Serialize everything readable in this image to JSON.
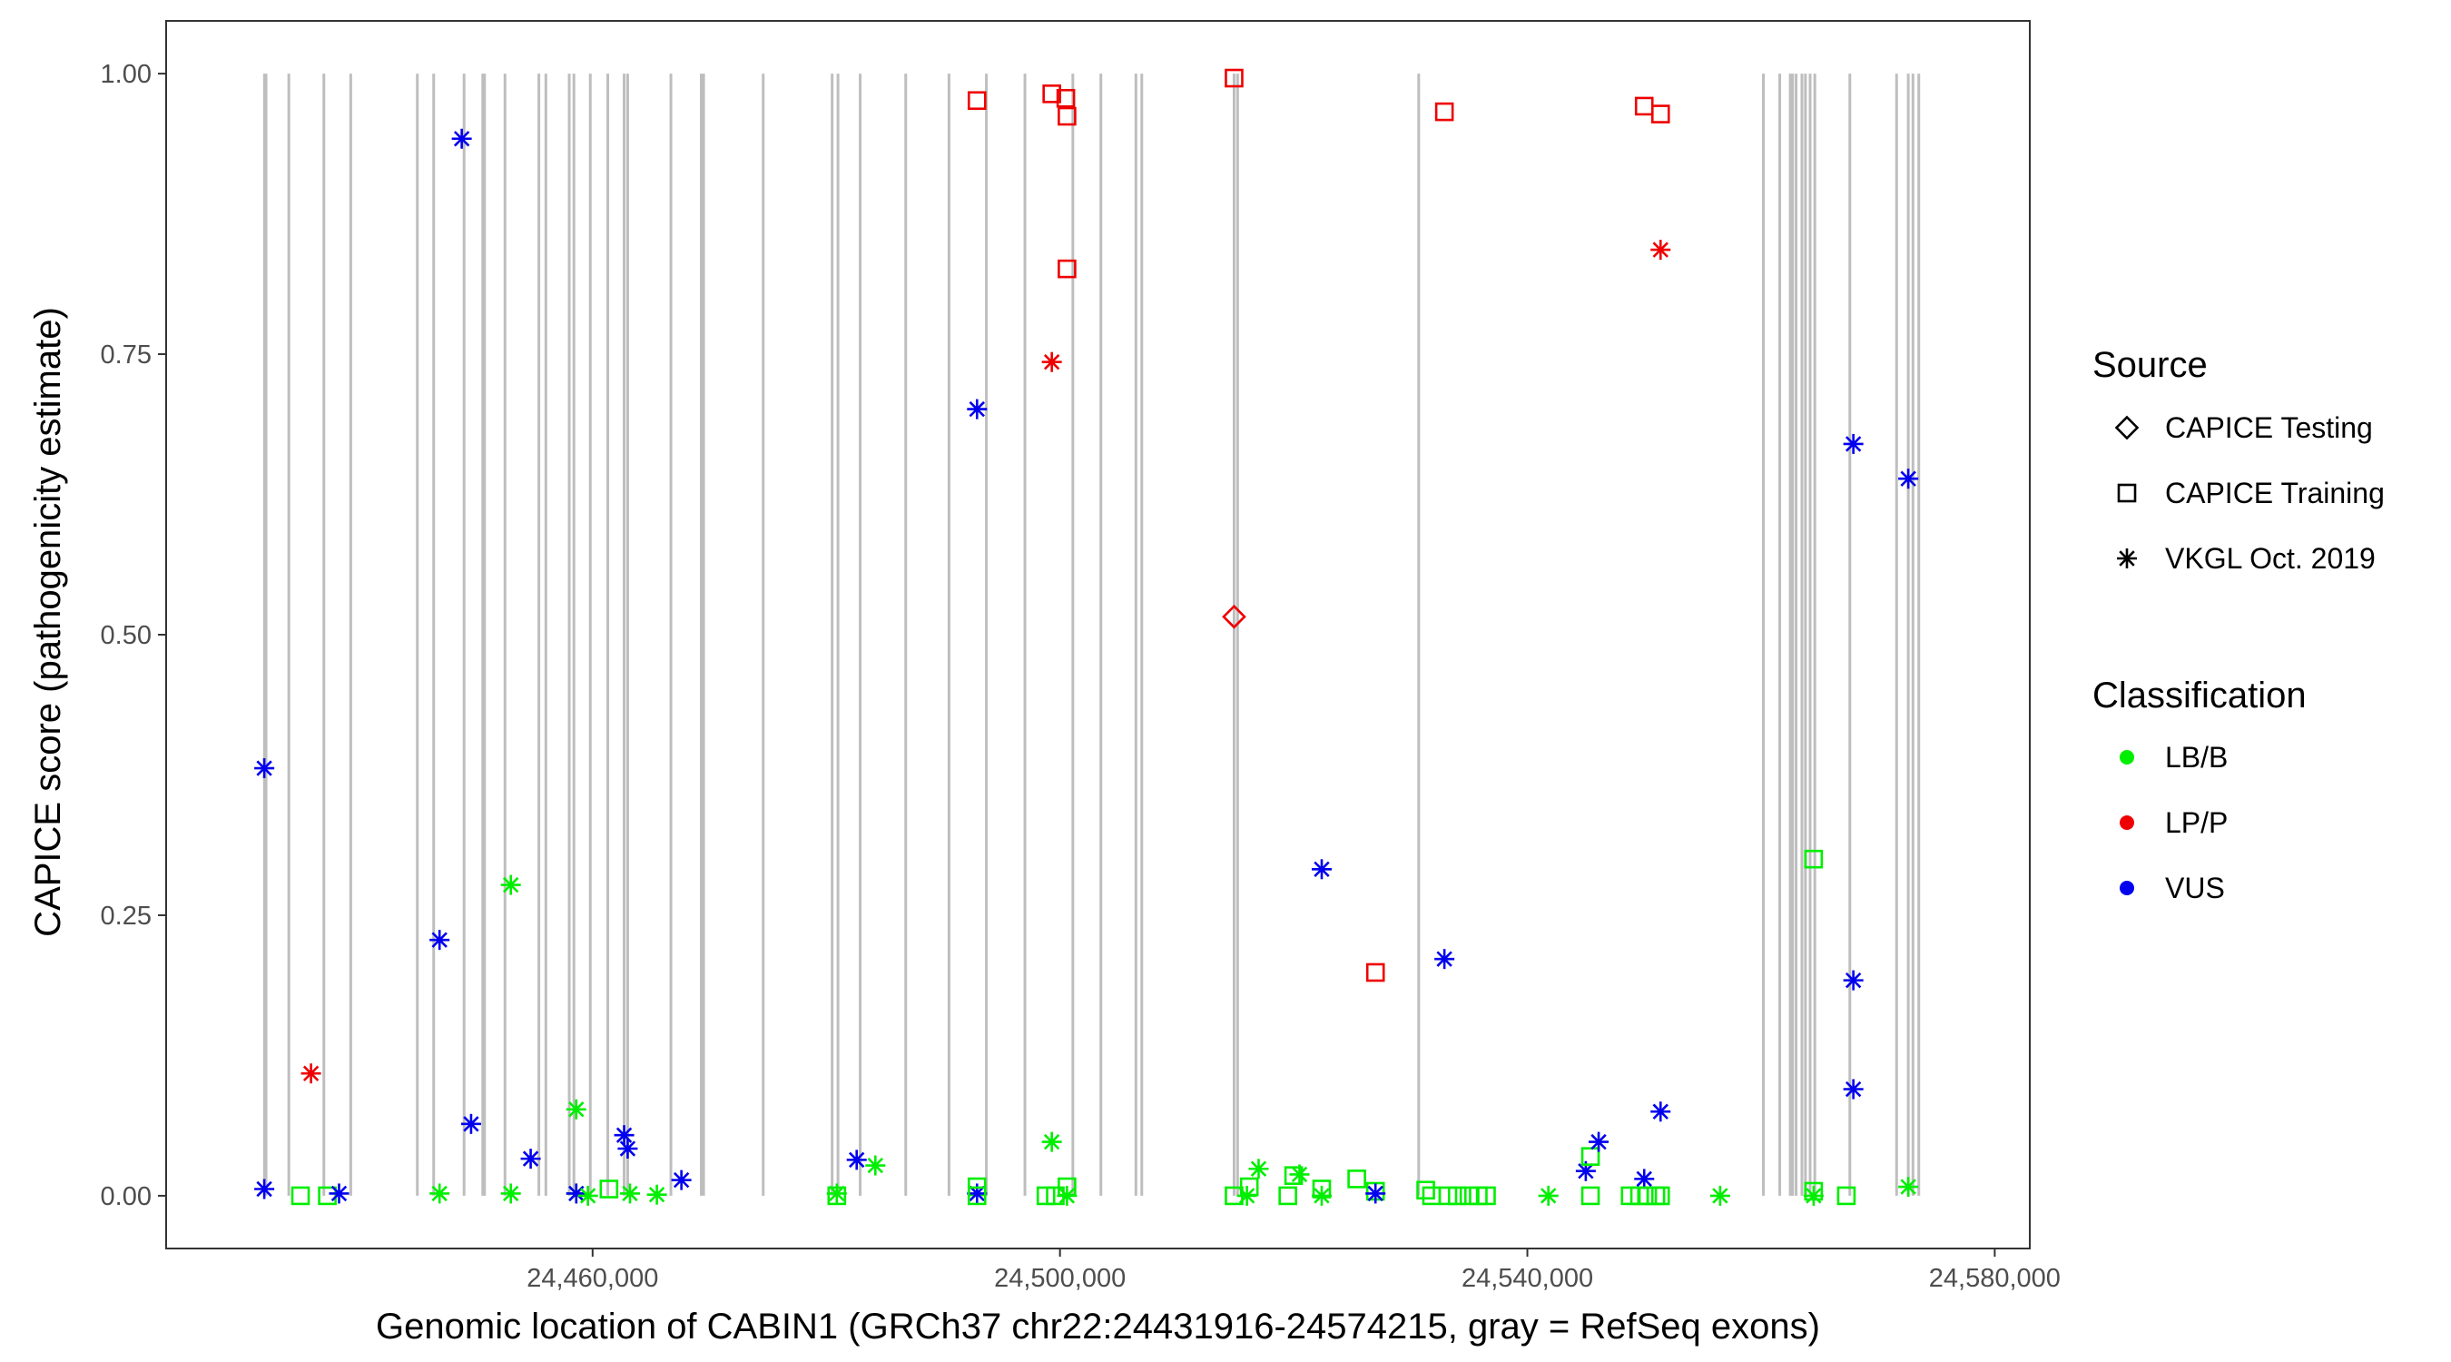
{
  "chart_data": {
    "type": "scatter",
    "title": "",
    "xlabel": "Genomic location of CABIN1 (GRCh37 chr22:24431916-24574215, gray = RefSeq exons)",
    "ylabel": "CAPICE score (pathogenicity estimate)",
    "xlim": [
      24423500,
      24583000
    ],
    "ylim": [
      -0.047,
      1.047
    ],
    "x_ticks": [
      24460000,
      24500000,
      24540000,
      24580000
    ],
    "x_tick_labels": [
      "24,460,000",
      "24,500,000",
      "24,540,000",
      "24,580,000"
    ],
    "y_ticks": [
      0.0,
      0.25,
      0.5,
      0.75,
      1.0
    ],
    "y_tick_labels": [
      "0.00",
      "0.25",
      "0.50",
      "0.75",
      "1.00"
    ],
    "grid": false,
    "exon_color": "#bebebe",
    "exons": [
      24431916,
      24432050,
      24434000,
      24437000,
      24439300,
      24445000,
      24446400,
      24449000,
      24450600,
      24450750,
      24452500,
      24455400,
      24456000,
      24458000,
      24458400,
      24459800,
      24461300,
      24462700,
      24463000,
      24466700,
      24469300,
      24469500,
      24474600,
      24480500,
      24481000,
      24482900,
      24486800,
      24490500,
      24493700,
      24497000,
      24501100,
      24503500,
      24506500,
      24507000,
      24514900,
      24515200,
      24530700,
      24560200,
      24561600,
      24562500,
      24562700,
      24563000,
      24563500,
      24563800,
      24564200,
      24564600,
      24567600,
      24571600,
      24572600,
      24573000,
      24573500
    ],
    "colors": {
      "LB/B": "#00ee00",
      "LP/P": "#ee0000",
      "VUS": "#0000ee"
    },
    "source_shapes": {
      "CAPICE Testing": "diamond",
      "CAPICE Training": "square",
      "VKGL Oct. 2019": "asterisk"
    },
    "points": [
      {
        "x": 24431900,
        "y": 0.381,
        "source": "VKGL Oct. 2019",
        "classification": "VUS"
      },
      {
        "x": 24431900,
        "y": 0.006,
        "source": "VKGL Oct. 2019",
        "classification": "VUS"
      },
      {
        "x": 24435000,
        "y": 0.0,
        "source": "CAPICE Training",
        "classification": "LB/B"
      },
      {
        "x": 24435900,
        "y": 0.109,
        "source": "VKGL Oct. 2019",
        "classification": "LP/P"
      },
      {
        "x": 24437300,
        "y": 0.0,
        "source": "CAPICE Training",
        "classification": "LB/B"
      },
      {
        "x": 24438300,
        "y": 0.002,
        "source": "VKGL Oct. 2019",
        "classification": "VUS"
      },
      {
        "x": 24446900,
        "y": 0.002,
        "source": "VKGL Oct. 2019",
        "classification": "LB/B"
      },
      {
        "x": 24446900,
        "y": 0.228,
        "source": "VKGL Oct. 2019",
        "classification": "VUS"
      },
      {
        "x": 24448800,
        "y": 0.942,
        "source": "VKGL Oct. 2019",
        "classification": "VUS"
      },
      {
        "x": 24449600,
        "y": 0.064,
        "source": "VKGL Oct. 2019",
        "classification": "VUS"
      },
      {
        "x": 24453000,
        "y": 0.002,
        "source": "VKGL Oct. 2019",
        "classification": "LB/B"
      },
      {
        "x": 24453000,
        "y": 0.277,
        "source": "VKGL Oct. 2019",
        "classification": "LB/B"
      },
      {
        "x": 24454700,
        "y": 0.033,
        "source": "VKGL Oct. 2019",
        "classification": "VUS"
      },
      {
        "x": 24458600,
        "y": 0.077,
        "source": "VKGL Oct. 2019",
        "classification": "LB/B"
      },
      {
        "x": 24458600,
        "y": 0.002,
        "source": "VKGL Oct. 2019",
        "classification": "LB/B"
      },
      {
        "x": 24458600,
        "y": 0.002,
        "source": "VKGL Oct. 2019",
        "classification": "VUS"
      },
      {
        "x": 24459600,
        "y": 0.0,
        "source": "VKGL Oct. 2019",
        "classification": "LB/B"
      },
      {
        "x": 24461400,
        "y": 0.006,
        "source": "CAPICE Training",
        "classification": "LB/B"
      },
      {
        "x": 24462700,
        "y": 0.054,
        "source": "VKGL Oct. 2019",
        "classification": "VUS"
      },
      {
        "x": 24463000,
        "y": 0.042,
        "source": "VKGL Oct. 2019",
        "classification": "VUS"
      },
      {
        "x": 24463200,
        "y": 0.002,
        "source": "VKGL Oct. 2019",
        "classification": "LB/B"
      },
      {
        "x": 24465500,
        "y": 0.001,
        "source": "VKGL Oct. 2019",
        "classification": "LB/B"
      },
      {
        "x": 24467600,
        "y": 0.014,
        "source": "VKGL Oct. 2019",
        "classification": "VUS"
      },
      {
        "x": 24480900,
        "y": 0.002,
        "source": "VKGL Oct. 2019",
        "classification": "LB/B"
      },
      {
        "x": 24480900,
        "y": 0.0,
        "source": "CAPICE Training",
        "classification": "LB/B"
      },
      {
        "x": 24482600,
        "y": 0.032,
        "source": "VKGL Oct. 2019",
        "classification": "VUS"
      },
      {
        "x": 24484200,
        "y": 0.027,
        "source": "VKGL Oct. 2019",
        "classification": "LB/B"
      },
      {
        "x": 24492900,
        "y": 0.976,
        "source": "CAPICE Training",
        "classification": "LP/P"
      },
      {
        "x": 24492900,
        "y": 0.701,
        "source": "VKGL Oct. 2019",
        "classification": "VUS"
      },
      {
        "x": 24492900,
        "y": 0.008,
        "source": "CAPICE Training",
        "classification": "LB/B"
      },
      {
        "x": 24492900,
        "y": 0.002,
        "source": "VKGL Oct. 2019",
        "classification": "VUS"
      },
      {
        "x": 24492900,
        "y": 0.0,
        "source": "CAPICE Training",
        "classification": "LB/B"
      },
      {
        "x": 24498800,
        "y": 0.0,
        "source": "CAPICE Training",
        "classification": "LB/B"
      },
      {
        "x": 24499300,
        "y": 0.982,
        "source": "CAPICE Training",
        "classification": "LP/P"
      },
      {
        "x": 24499300,
        "y": 0.743,
        "source": "VKGL Oct. 2019",
        "classification": "LP/P"
      },
      {
        "x": 24499300,
        "y": 0.048,
        "source": "VKGL Oct. 2019",
        "classification": "LB/B"
      },
      {
        "x": 24499600,
        "y": 0.0,
        "source": "CAPICE Training",
        "classification": "LB/B"
      },
      {
        "x": 24500500,
        "y": 0.978,
        "source": "CAPICE Training",
        "classification": "LP/P"
      },
      {
        "x": 24500600,
        "y": 0.962,
        "source": "CAPICE Training",
        "classification": "LP/P"
      },
      {
        "x": 24500600,
        "y": 0.826,
        "source": "CAPICE Training",
        "classification": "LP/P"
      },
      {
        "x": 24500600,
        "y": 0.008,
        "source": "CAPICE Training",
        "classification": "LB/B"
      },
      {
        "x": 24500600,
        "y": 0.0,
        "source": "VKGL Oct. 2019",
        "classification": "LB/B"
      },
      {
        "x": 24514900,
        "y": 0.996,
        "source": "CAPICE Training",
        "classification": "LP/P"
      },
      {
        "x": 24514900,
        "y": 0.516,
        "source": "CAPICE Testing",
        "classification": "LP/P"
      },
      {
        "x": 24514900,
        "y": 0.0,
        "source": "CAPICE Training",
        "classification": "LB/B"
      },
      {
        "x": 24516000,
        "y": 0.0,
        "source": "VKGL Oct. 2019",
        "classification": "LB/B"
      },
      {
        "x": 24516200,
        "y": 0.008,
        "source": "CAPICE Training",
        "classification": "LB/B"
      },
      {
        "x": 24517000,
        "y": 0.024,
        "source": "VKGL Oct. 2019",
        "classification": "LB/B"
      },
      {
        "x": 24519500,
        "y": 0.0,
        "source": "CAPICE Training",
        "classification": "LB/B"
      },
      {
        "x": 24520000,
        "y": 0.018,
        "source": "CAPICE Training",
        "classification": "LB/B"
      },
      {
        "x": 24520500,
        "y": 0.019,
        "source": "VKGL Oct. 2019",
        "classification": "LB/B"
      },
      {
        "x": 24522400,
        "y": 0.291,
        "source": "VKGL Oct. 2019",
        "classification": "VUS"
      },
      {
        "x": 24522400,
        "y": 0.006,
        "source": "CAPICE Training",
        "classification": "LB/B"
      },
      {
        "x": 24522400,
        "y": 0.0,
        "source": "VKGL Oct. 2019",
        "classification": "LB/B"
      },
      {
        "x": 24525400,
        "y": 0.015,
        "source": "CAPICE Training",
        "classification": "LB/B"
      },
      {
        "x": 24527000,
        "y": 0.199,
        "source": "CAPICE Training",
        "classification": "LP/P"
      },
      {
        "x": 24527000,
        "y": 0.004,
        "source": "CAPICE Training",
        "classification": "LB/B"
      },
      {
        "x": 24527000,
        "y": 0.002,
        "source": "VKGL Oct. 2019",
        "classification": "VUS"
      },
      {
        "x": 24531300,
        "y": 0.005,
        "source": "CAPICE Training",
        "classification": "LB/B"
      },
      {
        "x": 24531800,
        "y": 0.0,
        "source": "CAPICE Training",
        "classification": "LB/B"
      },
      {
        "x": 24532900,
        "y": 0.966,
        "source": "CAPICE Training",
        "classification": "LP/P"
      },
      {
        "x": 24532900,
        "y": 0.211,
        "source": "VKGL Oct. 2019",
        "classification": "VUS"
      },
      {
        "x": 24533200,
        "y": 0.0,
        "source": "CAPICE Training",
        "classification": "LB/B"
      },
      {
        "x": 24534000,
        "y": 0.0,
        "source": "CAPICE Training",
        "classification": "LB/B"
      },
      {
        "x": 24535000,
        "y": 0.0,
        "source": "CAPICE Training",
        "classification": "LB/B"
      },
      {
        "x": 24535800,
        "y": 0.0,
        "source": "CAPICE Training",
        "classification": "LB/B"
      },
      {
        "x": 24536500,
        "y": 0.0,
        "source": "CAPICE Training",
        "classification": "LB/B"
      },
      {
        "x": 24541800,
        "y": 0.0,
        "source": "VKGL Oct. 2019",
        "classification": "LB/B"
      },
      {
        "x": 24545000,
        "y": 0.022,
        "source": "VKGL Oct. 2019",
        "classification": "VUS"
      },
      {
        "x": 24545400,
        "y": 0.035,
        "source": "CAPICE Training",
        "classification": "LB/B"
      },
      {
        "x": 24545400,
        "y": 0.0,
        "source": "CAPICE Training",
        "classification": "LB/B"
      },
      {
        "x": 24546100,
        "y": 0.048,
        "source": "VKGL Oct. 2019",
        "classification": "VUS"
      },
      {
        "x": 24548800,
        "y": 0.0,
        "source": "CAPICE Training",
        "classification": "LB/B"
      },
      {
        "x": 24549600,
        "y": 0.0,
        "source": "CAPICE Training",
        "classification": "LB/B"
      },
      {
        "x": 24550000,
        "y": 0.971,
        "source": "CAPICE Training",
        "classification": "LP/P"
      },
      {
        "x": 24550000,
        "y": 0.015,
        "source": "VKGL Oct. 2019",
        "classification": "VUS"
      },
      {
        "x": 24550300,
        "y": 0.0,
        "source": "CAPICE Training",
        "classification": "LB/B"
      },
      {
        "x": 24551000,
        "y": 0.0,
        "source": "CAPICE Training",
        "classification": "LB/B"
      },
      {
        "x": 24551400,
        "y": 0.964,
        "source": "CAPICE Training",
        "classification": "LP/P"
      },
      {
        "x": 24551400,
        "y": 0.843,
        "source": "VKGL Oct. 2019",
        "classification": "LP/P"
      },
      {
        "x": 24551400,
        "y": 0.075,
        "source": "VKGL Oct. 2019",
        "classification": "VUS"
      },
      {
        "x": 24551400,
        "y": 0.0,
        "source": "CAPICE Training",
        "classification": "LB/B"
      },
      {
        "x": 24556500,
        "y": 0.0,
        "source": "VKGL Oct. 2019",
        "classification": "LB/B"
      },
      {
        "x": 24564500,
        "y": 0.3,
        "source": "CAPICE Training",
        "classification": "LB/B"
      },
      {
        "x": 24564500,
        "y": 0.004,
        "source": "CAPICE Training",
        "classification": "LB/B"
      },
      {
        "x": 24564500,
        "y": 0.0,
        "source": "VKGL Oct. 2019",
        "classification": "LB/B"
      },
      {
        "x": 24567300,
        "y": 0.0,
        "source": "CAPICE Training",
        "classification": "LB/B"
      },
      {
        "x": 24567900,
        "y": 0.67,
        "source": "VKGL Oct. 2019",
        "classification": "VUS"
      },
      {
        "x": 24567900,
        "y": 0.192,
        "source": "VKGL Oct. 2019",
        "classification": "VUS"
      },
      {
        "x": 24567900,
        "y": 0.095,
        "source": "VKGL Oct. 2019",
        "classification": "VUS"
      },
      {
        "x": 24572600,
        "y": 0.639,
        "source": "VKGL Oct. 2019",
        "classification": "VUS"
      },
      {
        "x": 24572600,
        "y": 0.008,
        "source": "VKGL Oct. 2019",
        "classification": "LB/B"
      }
    ],
    "legend": {
      "position": "right",
      "source_title": "Source",
      "source_entries": [
        {
          "label": "CAPICE Testing",
          "shape": "diamond"
        },
        {
          "label": "CAPICE Training",
          "shape": "square"
        },
        {
          "label": "VKGL Oct. 2019",
          "shape": "asterisk"
        }
      ],
      "classification_title": "Classification",
      "classification_entries": [
        {
          "label": "LB/B",
          "color": "#00ee00"
        },
        {
          "label": "LP/P",
          "color": "#ee0000"
        },
        {
          "label": "VUS",
          "color": "#0000ee"
        }
      ]
    }
  }
}
